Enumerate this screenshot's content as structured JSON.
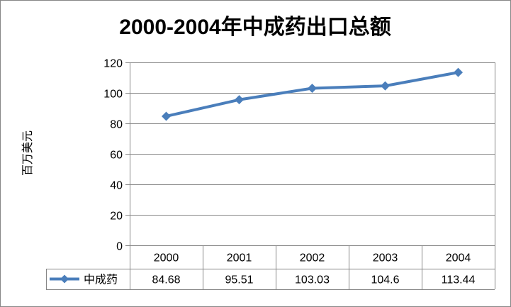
{
  "chart_data": {
    "type": "line",
    "title": "2000-2004年中成药出口总额",
    "ylabel": "百万美元",
    "xlabel": "",
    "ylim": [
      0,
      120
    ],
    "yticks": [
      0,
      20,
      40,
      60,
      80,
      100,
      120
    ],
    "categories": [
      "2000",
      "2001",
      "2002",
      "2003",
      "2004"
    ],
    "series": [
      {
        "name": "中成药",
        "values": [
          84.68,
          95.51,
          103.03,
          104.6,
          113.44
        ],
        "labels": [
          "84.68",
          "95.51",
          "103.03",
          "104.6",
          "113.44"
        ],
        "color": "#4a7ebb",
        "marker": "diamond"
      }
    ],
    "grid": true,
    "legend": "data-table",
    "border_color": "#868686",
    "grid_color": "#868686"
  }
}
